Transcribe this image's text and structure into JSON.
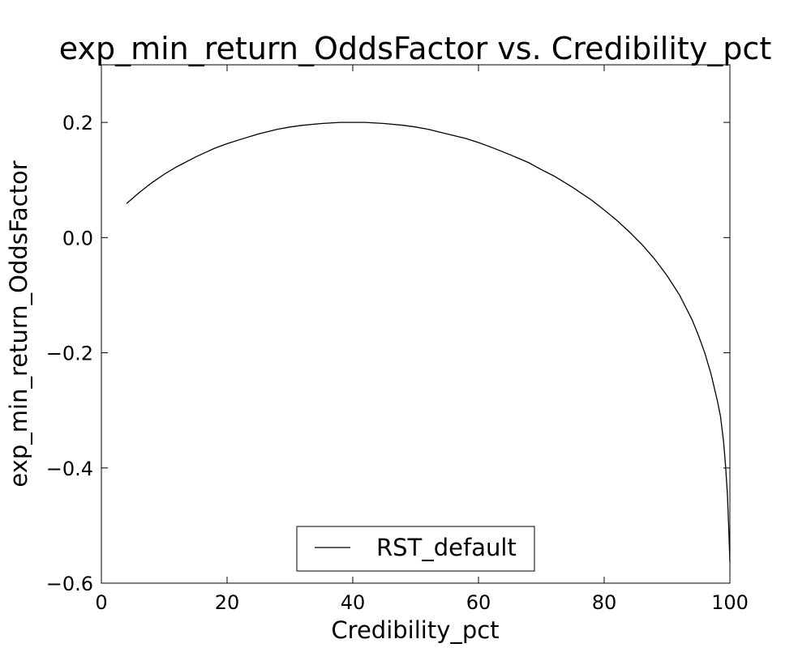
{
  "chart_data": {
    "type": "line",
    "title": "exp_min_return_OddsFactor vs. Credibility_pct",
    "xlabel": "Credibility_pct",
    "ylabel": "exp_min_return_OddsFactor",
    "xlim": [
      0,
      100
    ],
    "ylim": [
      -0.6,
      0.3
    ],
    "x_ticks": [
      0,
      20,
      40,
      60,
      80,
      100
    ],
    "x_tick_labels": [
      "0",
      "20",
      "40",
      "60",
      "80",
      "100"
    ],
    "y_ticks": [
      -0.6,
      -0.4,
      -0.2,
      0.0,
      0.2
    ],
    "y_tick_labels": [
      "−0.6",
      "−0.4",
      "−0.2",
      "0.0",
      "0.2"
    ],
    "grid": false,
    "legend": {
      "position": "lower-center",
      "entries": [
        "RST_default"
      ]
    },
    "series": [
      {
        "name": "RST_default",
        "color": "#000000",
        "x": [
          4,
          6,
          8,
          10,
          12,
          15,
          18,
          20,
          22,
          25,
          28,
          30,
          32,
          35,
          38,
          40,
          42,
          45,
          48,
          50,
          52,
          55,
          58,
          60,
          62,
          65,
          68,
          70,
          72,
          75,
          78,
          80,
          82,
          84,
          86,
          88,
          90,
          92,
          94,
          95,
          96,
          97,
          98,
          98.5,
          99,
          99.3,
          99.6,
          99.8,
          100
        ],
        "y": [
          0.059,
          0.078,
          0.095,
          0.11,
          0.123,
          0.14,
          0.155,
          0.163,
          0.17,
          0.18,
          0.188,
          0.192,
          0.195,
          0.198,
          0.2,
          0.2,
          0.2,
          0.198,
          0.195,
          0.192,
          0.188,
          0.18,
          0.172,
          0.165,
          0.157,
          0.144,
          0.13,
          0.118,
          0.107,
          0.087,
          0.065,
          0.048,
          0.03,
          0.01,
          -0.012,
          -0.037,
          -0.066,
          -0.1,
          -0.143,
          -0.17,
          -0.2,
          -0.237,
          -0.283,
          -0.31,
          -0.355,
          -0.395,
          -0.445,
          -0.5,
          -0.563
        ]
      }
    ]
  }
}
